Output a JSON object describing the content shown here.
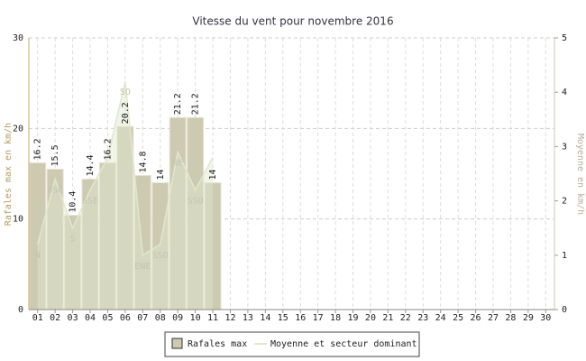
{
  "chart_data": {
    "type": "bar",
    "title": "Vitesse du vent pour novembre 2016",
    "ylabel": "Rafales max en km/h",
    "y2label": "Moyenne en km/h",
    "categories": [
      "01",
      "02",
      "03",
      "04",
      "05",
      "06",
      "07",
      "08",
      "09",
      "10",
      "11",
      "12",
      "13",
      "14",
      "15",
      "16",
      "17",
      "18",
      "19",
      "20",
      "21",
      "22",
      "23",
      "24",
      "25",
      "26",
      "27",
      "28",
      "29",
      "30"
    ],
    "series": [
      {
        "name": "Rafales max",
        "color": "#cdcab2",
        "values": [
          16.2,
          15.5,
          10.4,
          14.4,
          16.2,
          20.2,
          14.8,
          14.0,
          21.2,
          21.2,
          14.0,
          null,
          null,
          null,
          null,
          null,
          null,
          null,
          null,
          null,
          null,
          null,
          null,
          null,
          null,
          null,
          null,
          null,
          null,
          null
        ]
      },
      {
        "name": "Moyenne et secteur dominant",
        "color": "#dfe8cc",
        "axis": "y2",
        "values": [
          1.2,
          2.4,
          1.5,
          2.2,
          2.8,
          4.2,
          1.0,
          1.2,
          2.9,
          2.2,
          2.8,
          null,
          null,
          null,
          null,
          null,
          null,
          null,
          null,
          null,
          null,
          null,
          null,
          null,
          null,
          null,
          null,
          null,
          null,
          null
        ],
        "labels": [
          "N",
          "OSO",
          "S",
          "SSE",
          null,
          "SO",
          "ENE",
          "SSO",
          "NE",
          "SSO",
          null,
          null,
          null,
          null,
          null,
          null,
          null,
          null,
          null,
          null,
          null,
          null,
          null,
          null,
          null,
          null,
          null,
          null,
          null,
          null
        ]
      }
    ],
    "ylim": [
      0,
      30
    ],
    "yticks": [
      0,
      10,
      20,
      30
    ],
    "y2lim": [
      0,
      5
    ],
    "y2ticks": [
      0,
      1,
      2,
      3,
      4,
      5
    ],
    "grid": true
  }
}
